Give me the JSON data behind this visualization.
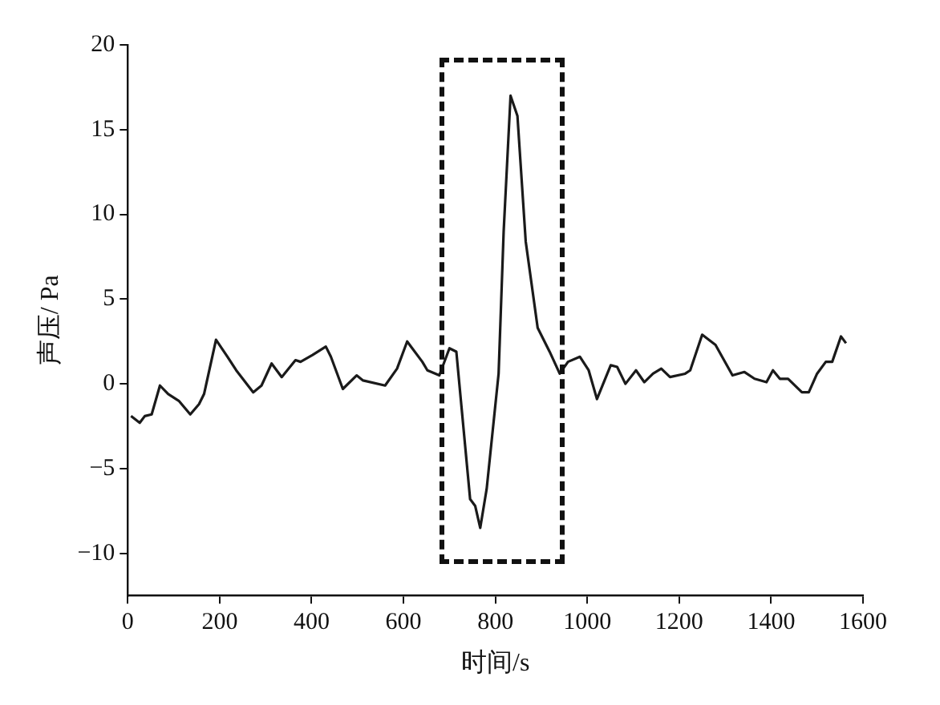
{
  "chart_data": {
    "type": "line",
    "xlabel": "时间/s",
    "ylabel": "声压/ Pa",
    "xlim": [
      0,
      1600
    ],
    "xticks": [
      0,
      200,
      400,
      600,
      800,
      1000,
      1200,
      1400,
      1600
    ],
    "ylim": [
      -12.5,
      20
    ],
    "yticks": [
      -10,
      -5,
      0,
      5,
      10,
      15,
      20
    ],
    "grid": false,
    "legend": false,
    "marker": "none",
    "line_style": "solid",
    "series": [
      {
        "color": "#1a1a1a",
        "x": [
          7,
          26,
          37,
          52,
          70,
          88,
          111,
          136,
          155,
          166,
          192,
          217,
          236,
          273,
          291,
          313,
          335,
          365,
          376,
          402,
          431,
          442,
          468,
          498,
          512,
          560,
          586,
          608,
          641,
          652,
          678,
          700,
          715,
          745,
          756,
          767,
          781,
          807,
          818,
          833,
          848,
          866,
          892,
          918,
          940,
          958,
          984,
          1003,
          1021,
          1051,
          1065,
          1083,
          1106,
          1124,
          1143,
          1161,
          1180,
          1213,
          1224,
          1250,
          1279,
          1316,
          1342,
          1364,
          1390,
          1404,
          1419,
          1437,
          1467,
          1482,
          1500,
          1519,
          1533,
          1552,
          1563
        ],
        "values": [
          -1.9,
          -2.3,
          -1.9,
          -1.8,
          -0.1,
          -0.6,
          -1.0,
          -1.8,
          -1.2,
          -0.6,
          2.6,
          1.6,
          0.8,
          -0.5,
          -0.1,
          1.2,
          0.4,
          1.4,
          1.3,
          1.7,
          2.2,
          1.6,
          -0.3,
          0.5,
          0.2,
          -0.1,
          0.9,
          2.5,
          1.3,
          0.8,
          0.5,
          2.1,
          1.9,
          -6.8,
          -7.2,
          -8.5,
          -6.2,
          0.6,
          9.0,
          17.0,
          15.8,
          8.4,
          3.3,
          1.9,
          0.6,
          1.3,
          1.6,
          0.8,
          -0.9,
          1.1,
          1.0,
          0.0,
          0.8,
          0.1,
          0.6,
          0.9,
          0.4,
          0.6,
          0.8,
          2.9,
          2.3,
          0.5,
          0.7,
          0.3,
          0.1,
          0.8,
          0.3,
          0.3,
          -0.5,
          -0.5,
          0.6,
          1.3,
          1.3,
          2.8,
          2.4
        ]
      }
    ]
  }
}
